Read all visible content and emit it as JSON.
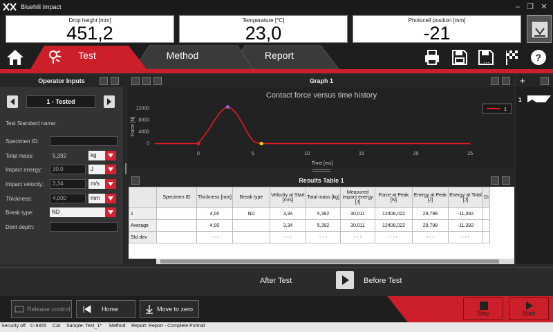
{
  "app": {
    "title": "Bluehill Impact"
  },
  "readouts": [
    {
      "label": "Drop height   [mm]",
      "value": "451,2"
    },
    {
      "label": "Temperature   [°C]",
      "value": "23,0"
    },
    {
      "label": "Photocell position   [mm]",
      "value": "-21"
    }
  ],
  "tabs": {
    "test": "Test",
    "method": "Method",
    "report": "Report"
  },
  "operator": {
    "title": "Operator Inputs",
    "specimen": "1 - Tested",
    "test_standard_label": "Test Standard name:",
    "fields": [
      {
        "label": "Specimen ID:",
        "value": "",
        "unit": ""
      },
      {
        "label": "Total mass:",
        "value": "5,392",
        "unit": "kg"
      },
      {
        "label": "Impact energy:",
        "value": "30,0",
        "unit": "J"
      },
      {
        "label": "Impact velocity:",
        "value": "3,34",
        "unit": "m/s"
      },
      {
        "label": "Thickness:",
        "value": "4,000",
        "unit": "mm"
      },
      {
        "label": "Break type:",
        "value": "ND",
        "unit": ""
      },
      {
        "label": "Dent depth:",
        "value": "",
        "unit": ""
      }
    ]
  },
  "graph": {
    "panel_title": "Graph 1"
  },
  "chart_data": {
    "type": "line",
    "title": "Contact force versus time history",
    "xlabel": "Time [ms]",
    "ylabel": "Force [N]",
    "xlim": [
      -4,
      26
    ],
    "ylim": [
      -1500,
      13000
    ],
    "xticks": [
      "0",
      "5",
      "10",
      "15",
      "20",
      "25"
    ],
    "yticks": [
      "0",
      "4000",
      "8000",
      "12000"
    ],
    "legend": "top-right",
    "series": [
      {
        "name": "1",
        "color": "#e21b22",
        "x": [
          -4,
          0,
          0.5,
          1,
          1.5,
          2,
          2.5,
          3,
          3.5,
          4,
          4.5,
          5,
          5.5,
          6,
          8,
          10,
          15,
          20,
          25
        ],
        "y": [
          0,
          0,
          2500,
          5000,
          8000,
          10500,
          12300,
          12000,
          10200,
          7200,
          3800,
          1000,
          100,
          0,
          0,
          0,
          0,
          0,
          0
        ]
      }
    ],
    "markers": [
      {
        "x": 0,
        "y": 0,
        "color": "#e21b22"
      },
      {
        "x": 2.7,
        "y": 12400,
        "color": "#8a6ad0"
      },
      {
        "x": 5.8,
        "y": 0,
        "color": "#f2d51a"
      }
    ],
    "grid": false
  },
  "table": {
    "panel_title": "Results Table 1",
    "headers": [
      "",
      "Specimen ID",
      "Thickness [mm]",
      "Break type",
      "Velocity at Start [m/s]",
      "Total mass [kg]",
      "Measured impact energy [J]",
      "Force at Peak [N]",
      "Energy at Peak [J]",
      "Energy at Total [J]",
      "Di"
    ],
    "rows": [
      [
        "1",
        "",
        "4,00",
        "ND",
        "3,34",
        "5,392",
        "30,011",
        "12408,022",
        "29,798",
        "-11,392",
        ""
      ],
      [
        "Average",
        "",
        "4,00",
        "",
        "3,34",
        "5,392",
        "30,011",
        "12408,022",
        "29,798",
        "-11,392",
        ""
      ],
      [
        "Std dev",
        "",
        "- - -",
        "",
        "- - -",
        "- - -",
        "- - -",
        "- - -",
        "- - -",
        "- - -",
        ""
      ]
    ]
  },
  "right": {
    "item": "1"
  },
  "bottomnav": {
    "after": "After Test",
    "before": "Before Test"
  },
  "controls": {
    "release": "Release control",
    "home": "Home",
    "move": "Move to zero",
    "stop": "Stop",
    "start": "Start"
  },
  "status": {
    "security": "Security off",
    "frame": "C-9355",
    "cal": "CAI",
    "sample": "Sample: Test_1*",
    "method": "Method:",
    "report": "Report: Report - Complete Portrait"
  },
  "colors": {
    "accent": "#cc1f2a"
  }
}
